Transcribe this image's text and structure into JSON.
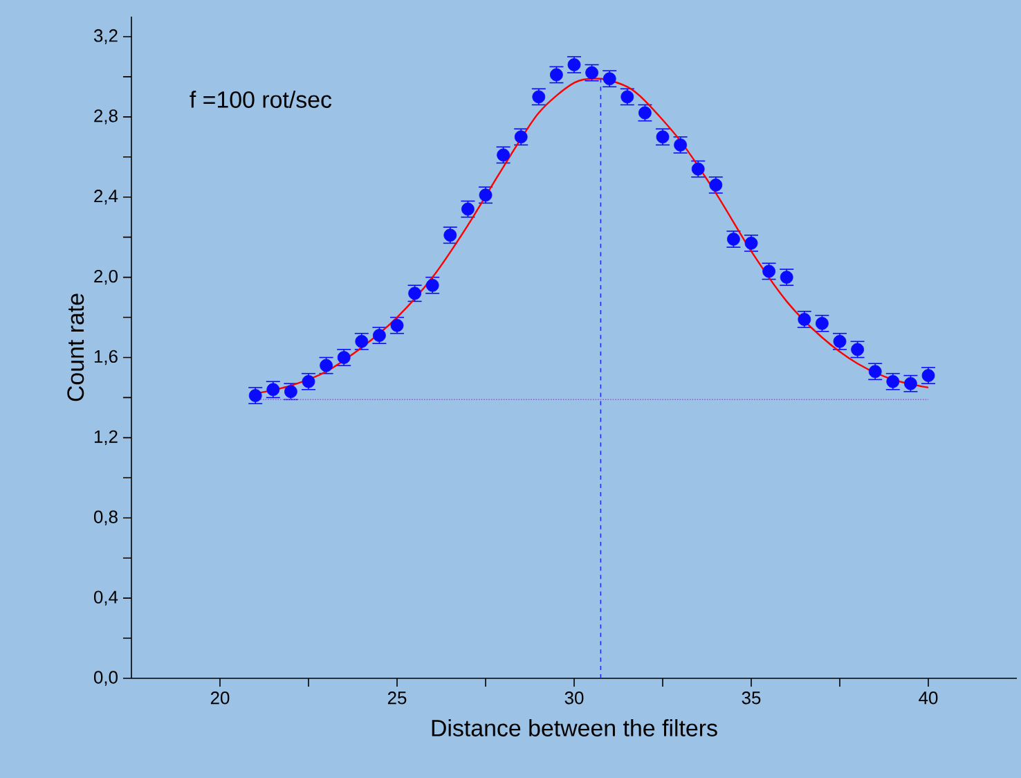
{
  "chart_data": {
    "type": "scatter",
    "xlabel": "Distance between the filters",
    "ylabel": "Count rate",
    "annotations": [
      "f =100 rot/sec"
    ],
    "xlim": [
      17.5,
      42.5
    ],
    "ylim": [
      0,
      3.3
    ],
    "xticks": [
      20,
      {
        "value": 22.5,
        "label": null
      },
      25,
      {
        "value": 27.5,
        "label": null
      },
      30,
      {
        "value": 32.5,
        "label": null
      },
      35,
      {
        "value": 37.5,
        "label": null
      },
      40
    ],
    "yticks": [
      {
        "value": 0,
        "label": "0,0"
      },
      {
        "value": 0.2,
        "label": null
      },
      {
        "value": 0.4,
        "label": "0,4"
      },
      {
        "value": 0.6,
        "label": null
      },
      {
        "value": 0.8,
        "label": "0,8"
      },
      {
        "value": 1.0,
        "label": null
      },
      {
        "value": 1.2,
        "label": "1,2"
      },
      {
        "value": 1.4,
        "label": null
      },
      {
        "value": 1.6,
        "label": "1,6"
      },
      {
        "value": 1.8,
        "label": null
      },
      {
        "value": 2.0,
        "label": "2,0"
      },
      {
        "value": 2.2,
        "label": null
      },
      {
        "value": 2.4,
        "label": "2,4"
      },
      {
        "value": 2.6,
        "label": null
      },
      {
        "value": 2.8,
        "label": "2,8"
      },
      {
        "value": 3.0,
        "label": null
      },
      {
        "value": 3.2,
        "label": "3,2"
      }
    ],
    "grid": false,
    "marker": "circle",
    "series": [
      {
        "color": "#0a0aff",
        "x": [
          21,
          21.5,
          22,
          22.5,
          23,
          23.5,
          24,
          24.5,
          25,
          25.5,
          26,
          26.5,
          27,
          27.5,
          28,
          28.5,
          29,
          29.5,
          30,
          30.5,
          31,
          31.5,
          32,
          32.5,
          33,
          33.5,
          34,
          34.5,
          35,
          35.5,
          36,
          36.5,
          37,
          37.5,
          38,
          38.5,
          39,
          39.5,
          40
        ],
        "values": [
          1.41,
          1.44,
          1.43,
          1.48,
          1.56,
          1.6,
          1.68,
          1.71,
          1.76,
          1.92,
          1.96,
          2.21,
          2.34,
          2.41,
          2.61,
          2.7,
          2.9,
          3.01,
          3.06,
          3.02,
          2.99,
          2.9,
          2.82,
          2.7,
          2.66,
          2.54,
          2.46,
          2.19,
          2.17,
          2.03,
          2.0,
          1.79,
          1.77,
          1.68,
          1.64,
          1.53,
          1.48,
          1.47,
          1.51
        ],
        "errors": [
          0.04,
          0.04,
          0.04,
          0.04,
          0.04,
          0.04,
          0.04,
          0.04,
          0.04,
          0.04,
          0.04,
          0.04,
          0.04,
          0.04,
          0.04,
          0.04,
          0.04,
          0.04,
          0.04,
          0.04,
          0.04,
          0.04,
          0.04,
          0.04,
          0.04,
          0.04,
          0.04,
          0.04,
          0.04,
          0.04,
          0.04,
          0.04,
          0.04,
          0.04,
          0.04,
          0.04,
          0.04,
          0.04,
          0.04
        ]
      },
      {
        "type": "line",
        "marker": "none",
        "color": "#ff0000",
        "x": [
          21,
          22,
          23,
          24,
          25,
          26,
          27,
          28,
          29,
          30,
          30.75,
          31.5,
          32,
          33,
          34,
          35,
          36,
          37,
          38,
          39,
          40
        ],
        "values": [
          1.42,
          1.46,
          1.53,
          1.65,
          1.8,
          2.0,
          2.26,
          2.55,
          2.82,
          2.97,
          2.99,
          2.95,
          2.88,
          2.68,
          2.42,
          2.13,
          1.88,
          1.7,
          1.57,
          1.49,
          1.45
        ]
      }
    ],
    "ref_lines": [
      {
        "axis": "x",
        "value": 30.75,
        "color": "#1a2cff",
        "line_style": "dashed"
      },
      {
        "axis": "y",
        "value": 1.39,
        "color": "#c040e0",
        "line_style": "dotted"
      }
    ]
  }
}
